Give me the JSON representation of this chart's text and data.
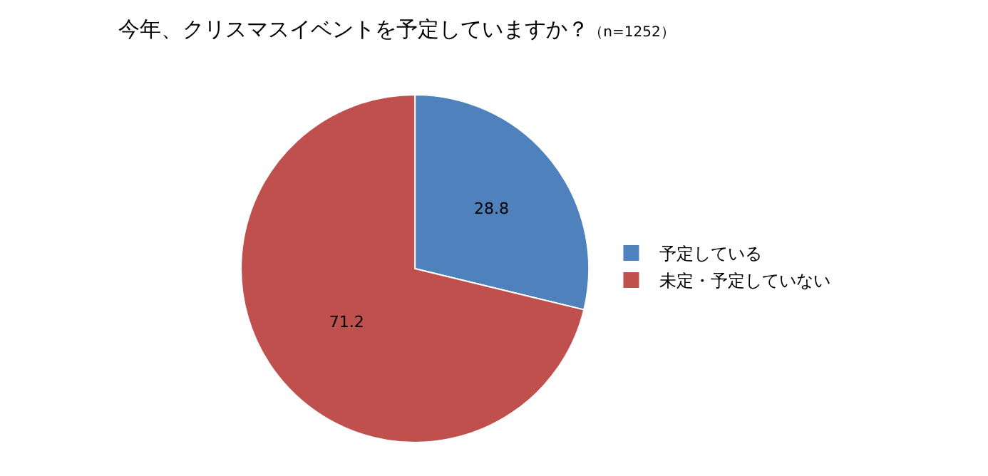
{
  "chart_data": {
    "type": "pie",
    "title": "今年、クリスマスイベントを予定していますか？",
    "subtitle": "（n=1252）",
    "categories": [
      "予定している",
      "未定・予定していない"
    ],
    "values": [
      28.8,
      71.2
    ],
    "colors": [
      "#4f81bd",
      "#c0504d"
    ],
    "data_labels": true,
    "legend": "right"
  }
}
